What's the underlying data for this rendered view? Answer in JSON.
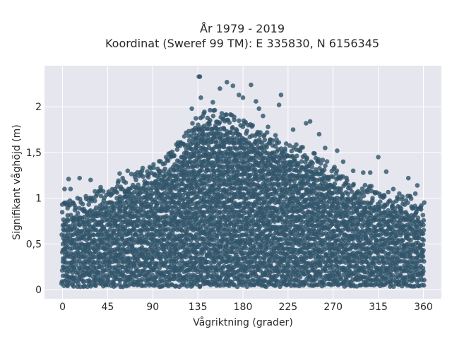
{
  "chart_data": {
    "type": "scatter",
    "title_line1": "År 1979 - 2019",
    "title_line2": "Koordinat (Sweref 99 TM): E 335830, N 6156345",
    "xlabel": "Vågriktning (grader)",
    "ylabel": "Signifikant våghöjd (m)",
    "xlim": [
      -18,
      378
    ],
    "ylim": [
      -0.1,
      2.45
    ],
    "xticks": [
      0,
      45,
      90,
      135,
      180,
      225,
      270,
      315,
      360
    ],
    "xtick_labels": [
      "0",
      "45",
      "90",
      "135",
      "180",
      "225",
      "270",
      "315",
      "360"
    ],
    "yticks": [
      0,
      0.5,
      1,
      1.5,
      2
    ],
    "ytick_labels": [
      "0",
      "0,5",
      "1",
      "1,5",
      "2"
    ],
    "grid": true,
    "marker_color": "#2f5469",
    "plot_background": "#e6e6ef",
    "upper_envelope": {
      "x": [
        0,
        20,
        45,
        70,
        90,
        105,
        120,
        135,
        150,
        165,
        180,
        195,
        210,
        225,
        240,
        255,
        270,
        285,
        300,
        315,
        330,
        345,
        360
      ],
      "y": [
        0.78,
        0.85,
        0.95,
        1.1,
        1.2,
        1.3,
        1.5,
        1.75,
        1.8,
        1.75,
        1.68,
        1.6,
        1.52,
        1.45,
        1.38,
        1.3,
        1.18,
        1.05,
        0.98,
        0.93,
        0.88,
        0.85,
        0.78
      ]
    },
    "outliers": [
      {
        "x": 137,
        "y": 2.33
      },
      {
        "x": 136,
        "y": 2.33
      },
      {
        "x": 157,
        "y": 2.2
      },
      {
        "x": 164,
        "y": 2.27
      },
      {
        "x": 170,
        "y": 2.23
      },
      {
        "x": 176,
        "y": 2.13
      },
      {
        "x": 188,
        "y": 2.24
      },
      {
        "x": 193,
        "y": 2.06
      },
      {
        "x": 218,
        "y": 2.13
      },
      {
        "x": 216,
        "y": 2.02
      },
      {
        "x": 180,
        "y": 2.1
      },
      {
        "x": 138,
        "y": 2.1
      },
      {
        "x": 150,
        "y": 2.05
      },
      {
        "x": 129,
        "y": 1.98
      },
      {
        "x": 196,
        "y": 1.98
      },
      {
        "x": 247,
        "y": 1.84
      },
      {
        "x": 243,
        "y": 1.82
      },
      {
        "x": 256,
        "y": 1.7
      },
      {
        "x": 274,
        "y": 1.52
      },
      {
        "x": 315,
        "y": 1.45
      },
      {
        "x": 323,
        "y": 1.29
      },
      {
        "x": 345,
        "y": 1.22
      },
      {
        "x": 354,
        "y": 1.14
      },
      {
        "x": 17,
        "y": 1.22
      },
      {
        "x": 6,
        "y": 1.21
      },
      {
        "x": 2,
        "y": 1.1
      },
      {
        "x": 8,
        "y": 1.1
      },
      {
        "x": 28,
        "y": 1.2
      },
      {
        "x": 65,
        "y": 1.3
      },
      {
        "x": 60,
        "y": 1.22
      },
      {
        "x": 80,
        "y": 1.33
      },
      {
        "x": 87,
        "y": 1.34
      },
      {
        "x": 96,
        "y": 1.3
      },
      {
        "x": 57,
        "y": 1.27
      },
      {
        "x": 38,
        "y": 1.12
      },
      {
        "x": 300,
        "y": 1.28
      },
      {
        "x": 290,
        "y": 1.3
      },
      {
        "x": 330,
        "y": 1.1
      },
      {
        "x": 336,
        "y": 1.05
      },
      {
        "x": 352,
        "y": 1.05
      },
      {
        "x": 358,
        "y": 0.92
      },
      {
        "x": 108,
        "y": 1.45
      },
      {
        "x": 118,
        "y": 1.6
      },
      {
        "x": 126,
        "y": 1.68
      },
      {
        "x": 200,
        "y": 1.9
      },
      {
        "x": 205,
        "y": 1.78
      },
      {
        "x": 230,
        "y": 1.75
      },
      {
        "x": 262,
        "y": 1.55
      },
      {
        "x": 280,
        "y": 1.4
      },
      {
        "x": 307,
        "y": 1.28
      }
    ]
  }
}
